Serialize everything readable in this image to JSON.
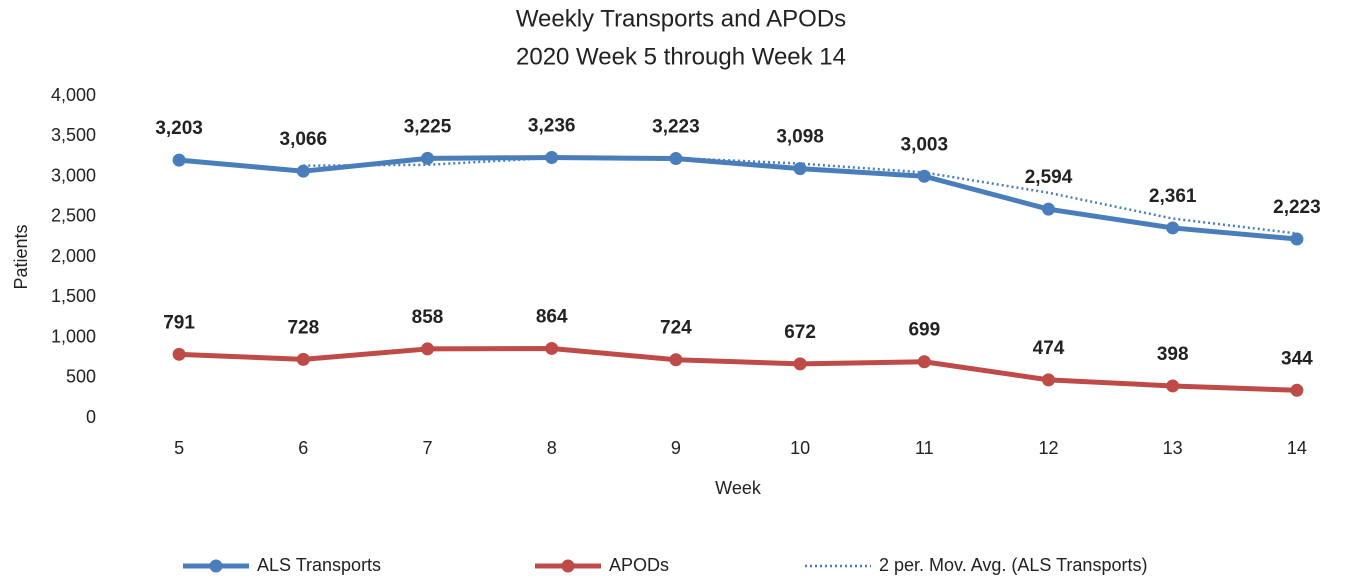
{
  "chart_data": {
    "type": "line",
    "title": "Weekly Transports and APODs",
    "subtitle": "2020 Week 5 through Week 14",
    "x_label": "Week",
    "y_label": "Patients",
    "categories": [
      "5",
      "6",
      "7",
      "8",
      "9",
      "10",
      "11",
      "12",
      "13",
      "14"
    ],
    "ylim": [
      0,
      4000
    ],
    "yticks": [
      0,
      500,
      {
        "value": 1000,
        "label": "1,000"
      },
      {
        "value": 1500,
        "label": "1,500"
      },
      {
        "value": 2000,
        "label": "2,000"
      },
      {
        "value": 2500,
        "label": "2,500"
      },
      {
        "value": 3000,
        "label": "3,000"
      },
      {
        "value": 3500,
        "label": "3,500"
      },
      {
        "value": 4000,
        "label": "4,000"
      }
    ],
    "grid": false,
    "legend": "bottom",
    "series": [
      {
        "name": "ALS Transports",
        "color": "#4a7ebb",
        "style": "solid",
        "markers": true,
        "values": [
          3203,
          3066,
          3225,
          3236,
          3223,
          3098,
          3003,
          2594,
          2361,
          2223
        ],
        "value_labels": [
          "3,203",
          "3,066",
          "3,225",
          "3,236",
          "3,223",
          "3,098",
          "3,003",
          "2,594",
          "2,361",
          "2,223"
        ]
      },
      {
        "name": "APODs",
        "color": "#be4b48",
        "style": "solid",
        "markers": true,
        "values": [
          791,
          728,
          858,
          864,
          724,
          672,
          699,
          474,
          398,
          344
        ]
      },
      {
        "name": "2 per. Mov. Avg. (ALS Transports)",
        "color": "#4a7ebb",
        "style": "dotted",
        "markers": false,
        "values": [
          null,
          3134.5,
          3145.5,
          3230.5,
          3229.5,
          3160.5,
          3050.5,
          2798.5,
          2477.5,
          2292
        ]
      }
    ]
  }
}
